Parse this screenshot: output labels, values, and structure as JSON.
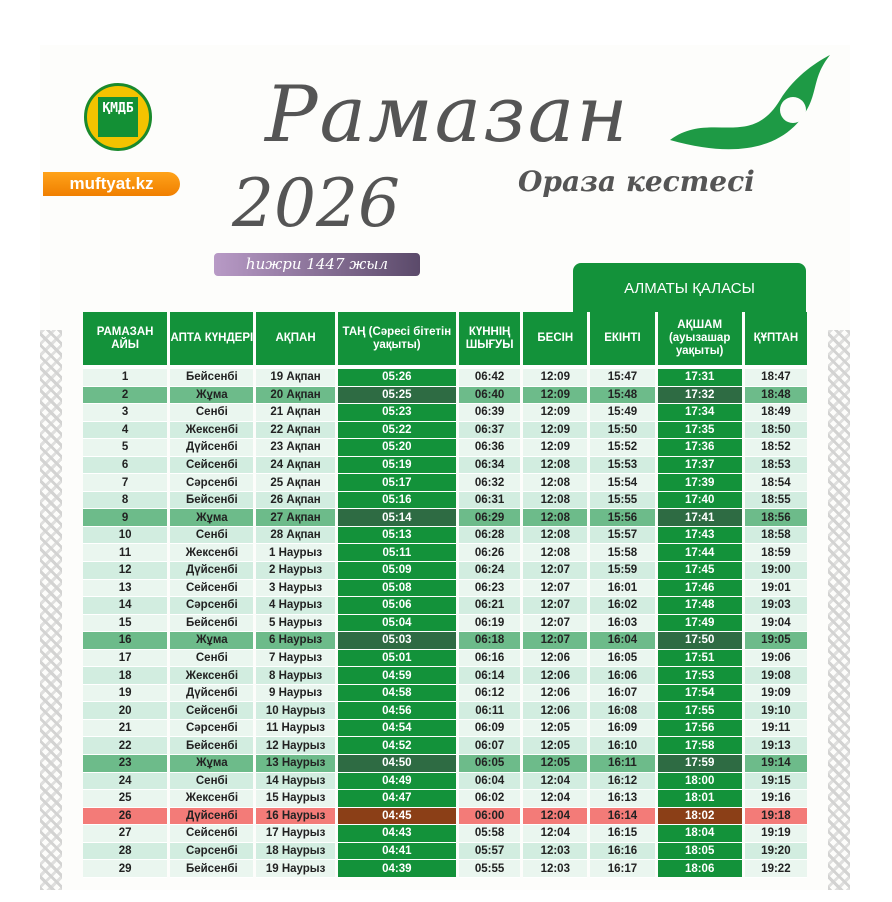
{
  "logo": {
    "site": "muftyat.kz",
    "emblem": "ҚМДБ"
  },
  "header": {
    "title": "Рамазан",
    "year": "2026",
    "subtitle": "Ораза кестесі",
    "hijri": "һижри 1447 жыл",
    "city": "АЛМАТЫ ҚАЛАСЫ"
  },
  "columns": [
    "РАМАЗАН АЙЫ",
    "АПТА КҮНДЕРІ",
    "АҚПАН",
    "ТАҢ (Сәресі бітетін уақыты)",
    "КҮННІҢ ШЫҒУЫ",
    "БЕСІН",
    "ЕКІНТІ",
    "АҚШАМ (ауызашар уақыты)",
    "ҚҰПТАН"
  ],
  "colors": {
    "green": "#13923a",
    "friday": "#6dbb8a",
    "highlight_day": "#f37b78"
  },
  "rows": [
    [
      "1",
      "Бейсенбі",
      "19 Ақпан",
      "05:26",
      "06:42",
      "12:09",
      "15:47",
      "17:31",
      "18:47"
    ],
    [
      "2",
      "Жұма",
      "20 Ақпан",
      "05:25",
      "06:40",
      "12:09",
      "15:48",
      "17:32",
      "18:48"
    ],
    [
      "3",
      "Сенбі",
      "21 Ақпан",
      "05:23",
      "06:39",
      "12:09",
      "15:49",
      "17:34",
      "18:49"
    ],
    [
      "4",
      "Жексенбі",
      "22 Ақпан",
      "05:22",
      "06:37",
      "12:09",
      "15:50",
      "17:35",
      "18:50"
    ],
    [
      "5",
      "Дүйсенбі",
      "23 Ақпан",
      "05:20",
      "06:36",
      "12:09",
      "15:52",
      "17:36",
      "18:52"
    ],
    [
      "6",
      "Сейсенбі",
      "24 Ақпан",
      "05:19",
      "06:34",
      "12:08",
      "15:53",
      "17:37",
      "18:53"
    ],
    [
      "7",
      "Сәрсенбі",
      "25 Ақпан",
      "05:17",
      "06:32",
      "12:08",
      "15:54",
      "17:39",
      "18:54"
    ],
    [
      "8",
      "Бейсенбі",
      "26 Ақпан",
      "05:16",
      "06:31",
      "12:08",
      "15:55",
      "17:40",
      "18:55"
    ],
    [
      "9",
      "Жұма",
      "27 Ақпан",
      "05:14",
      "06:29",
      "12:08",
      "15:56",
      "17:41",
      "18:56"
    ],
    [
      "10",
      "Сенбі",
      "28 Ақпан",
      "05:13",
      "06:28",
      "12:08",
      "15:57",
      "17:43",
      "18:58"
    ],
    [
      "11",
      "Жексенбі",
      "1 Наурыз",
      "05:11",
      "06:26",
      "12:08",
      "15:58",
      "17:44",
      "18:59"
    ],
    [
      "12",
      "Дүйсенбі",
      "2 Наурыз",
      "05:09",
      "06:24",
      "12:07",
      "15:59",
      "17:45",
      "19:00"
    ],
    [
      "13",
      "Сейсенбі",
      "3 Наурыз",
      "05:08",
      "06:23",
      "12:07",
      "16:01",
      "17:46",
      "19:01"
    ],
    [
      "14",
      "Сәрсенбі",
      "4 Наурыз",
      "05:06",
      "06:21",
      "12:07",
      "16:02",
      "17:48",
      "19:03"
    ],
    [
      "15",
      "Бейсенбі",
      "5 Наурыз",
      "05:04",
      "06:19",
      "12:07",
      "16:03",
      "17:49",
      "19:04"
    ],
    [
      "16",
      "Жұма",
      "6 Наурыз",
      "05:03",
      "06:18",
      "12:07",
      "16:04",
      "17:50",
      "19:05"
    ],
    [
      "17",
      "Сенбі",
      "7 Наурыз",
      "05:01",
      "06:16",
      "12:06",
      "16:05",
      "17:51",
      "19:06"
    ],
    [
      "18",
      "Жексенбі",
      "8 Наурыз",
      "04:59",
      "06:14",
      "12:06",
      "16:06",
      "17:53",
      "19:08"
    ],
    [
      "19",
      "Дүйсенбі",
      "9 Наурыз",
      "04:58",
      "06:12",
      "12:06",
      "16:07",
      "17:54",
      "19:09"
    ],
    [
      "20",
      "Сейсенбі",
      "10 Наурыз",
      "04:56",
      "06:11",
      "12:06",
      "16:08",
      "17:55",
      "19:10"
    ],
    [
      "21",
      "Сәрсенбі",
      "11 Наурыз",
      "04:54",
      "06:09",
      "12:05",
      "16:09",
      "17:56",
      "19:11"
    ],
    [
      "22",
      "Бейсенбі",
      "12 Наурыз",
      "04:52",
      "06:07",
      "12:05",
      "16:10",
      "17:58",
      "19:13"
    ],
    [
      "23",
      "Жұма",
      "13 Наурыз",
      "04:50",
      "06:05",
      "12:05",
      "16:11",
      "17:59",
      "19:14"
    ],
    [
      "24",
      "Сенбі",
      "14 Наурыз",
      "04:49",
      "06:04",
      "12:04",
      "16:12",
      "18:00",
      "19:15"
    ],
    [
      "25",
      "Жексенбі",
      "15 Наурыз",
      "04:47",
      "06:02",
      "12:04",
      "16:13",
      "18:01",
      "19:16"
    ],
    [
      "26",
      "Дүйсенбі",
      "16 Наурыз",
      "04:45",
      "06:00",
      "12:04",
      "16:14",
      "18:02",
      "19:18"
    ],
    [
      "27",
      "Сейсенбі",
      "17 Наурыз",
      "04:43",
      "05:58",
      "12:04",
      "16:15",
      "18:04",
      "19:19"
    ],
    [
      "28",
      "Сәрсенбі",
      "18 Наурыз",
      "04:41",
      "05:57",
      "12:03",
      "16:16",
      "18:05",
      "19:20"
    ],
    [
      "29",
      "Бейсенбі",
      "19 Наурыз",
      "04:39",
      "05:55",
      "12:03",
      "16:17",
      "18:06",
      "19:22"
    ]
  ],
  "friday_rows": [
    "2",
    "9",
    "16",
    "23"
  ],
  "highlighted_rows": [
    "26"
  ]
}
